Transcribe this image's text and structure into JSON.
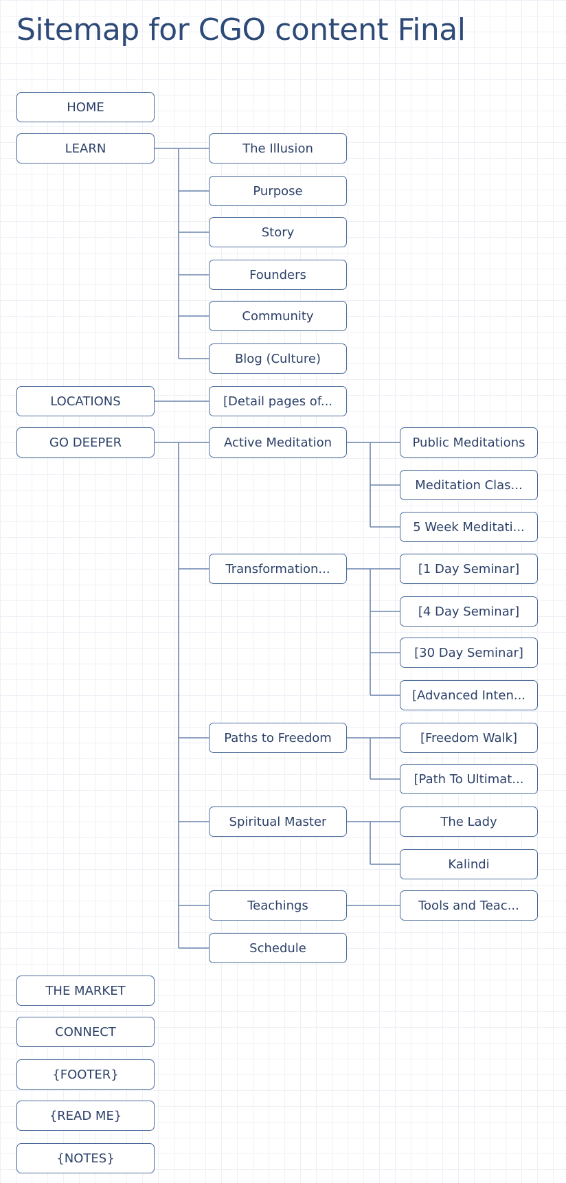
{
  "title": "Sitemap for CGO content Final",
  "colors": {
    "title": "#2d4a78",
    "node_border": "#4a6a9a",
    "node_text": "#2c4068",
    "connector": "#6a84ae",
    "grid": "#eef0f6"
  },
  "nodes": [
    {
      "id": "home",
      "label": "HOME",
      "level": 1,
      "parent": null
    },
    {
      "id": "learn",
      "label": "LEARN",
      "level": 1,
      "parent": null
    },
    {
      "id": "the-illusion",
      "label": "The Illusion",
      "level": 2,
      "parent": "learn"
    },
    {
      "id": "purpose",
      "label": "Purpose",
      "level": 2,
      "parent": "learn"
    },
    {
      "id": "story",
      "label": "Story",
      "level": 2,
      "parent": "learn"
    },
    {
      "id": "founders",
      "label": "Founders",
      "level": 2,
      "parent": "learn"
    },
    {
      "id": "community",
      "label": "Community",
      "level": 2,
      "parent": "learn"
    },
    {
      "id": "blog-culture",
      "label": "Blog (Culture)",
      "level": 2,
      "parent": "learn"
    },
    {
      "id": "locations",
      "label": "LOCATIONS",
      "level": 1,
      "parent": null
    },
    {
      "id": "detail-pages",
      "label": "[Detail pages of...",
      "level": 2,
      "parent": "locations"
    },
    {
      "id": "go-deeper",
      "label": "GO DEEPER",
      "level": 1,
      "parent": null
    },
    {
      "id": "active-meditation",
      "label": "Active Meditation",
      "level": 2,
      "parent": "go-deeper"
    },
    {
      "id": "public-meditations",
      "label": "Public Meditations",
      "level": 3,
      "parent": "active-meditation"
    },
    {
      "id": "meditation-classes",
      "label": "Meditation Clas...",
      "level": 3,
      "parent": "active-meditation"
    },
    {
      "id": "five-week-meditation",
      "label": "5 Week Meditati...",
      "level": 3,
      "parent": "active-meditation"
    },
    {
      "id": "transformation",
      "label": "Transformation...",
      "level": 2,
      "parent": "go-deeper"
    },
    {
      "id": "one-day-seminar",
      "label": "[1 Day Seminar]",
      "level": 3,
      "parent": "transformation"
    },
    {
      "id": "four-day-seminar",
      "label": "[4 Day Seminar]",
      "level": 3,
      "parent": "transformation"
    },
    {
      "id": "thirty-day-seminar",
      "label": "[30 Day Seminar]",
      "level": 3,
      "parent": "transformation"
    },
    {
      "id": "advanced-intensive",
      "label": "[Advanced Inten...",
      "level": 3,
      "parent": "transformation"
    },
    {
      "id": "paths-to-freedom",
      "label": "Paths to Freedom",
      "level": 2,
      "parent": "go-deeper"
    },
    {
      "id": "freedom-walk",
      "label": "[Freedom Walk]",
      "level": 3,
      "parent": "paths-to-freedom"
    },
    {
      "id": "path-to-ultimate",
      "label": "[Path To Ultimat...",
      "level": 3,
      "parent": "paths-to-freedom"
    },
    {
      "id": "spiritual-master",
      "label": "Spiritual Master",
      "level": 2,
      "parent": "go-deeper"
    },
    {
      "id": "the-lady",
      "label": "The Lady",
      "level": 3,
      "parent": "spiritual-master"
    },
    {
      "id": "kalindi",
      "label": "Kalindi",
      "level": 3,
      "parent": "spiritual-master"
    },
    {
      "id": "teachings",
      "label": "Teachings",
      "level": 2,
      "parent": "go-deeper"
    },
    {
      "id": "tools-and-teachings",
      "label": "Tools and Teac...",
      "level": 3,
      "parent": "teachings"
    },
    {
      "id": "schedule",
      "label": "Schedule",
      "level": 2,
      "parent": "go-deeper"
    },
    {
      "id": "the-market",
      "label": "THE MARKET",
      "level": 1,
      "parent": null
    },
    {
      "id": "connect",
      "label": "CONNECT",
      "level": 1,
      "parent": null
    },
    {
      "id": "footer",
      "label": "{FOOTER}",
      "level": 1,
      "parent": null
    },
    {
      "id": "read-me",
      "label": "{READ ME}",
      "level": 1,
      "parent": null
    },
    {
      "id": "notes",
      "label": "{NOTES}",
      "level": 1,
      "parent": null
    }
  ]
}
